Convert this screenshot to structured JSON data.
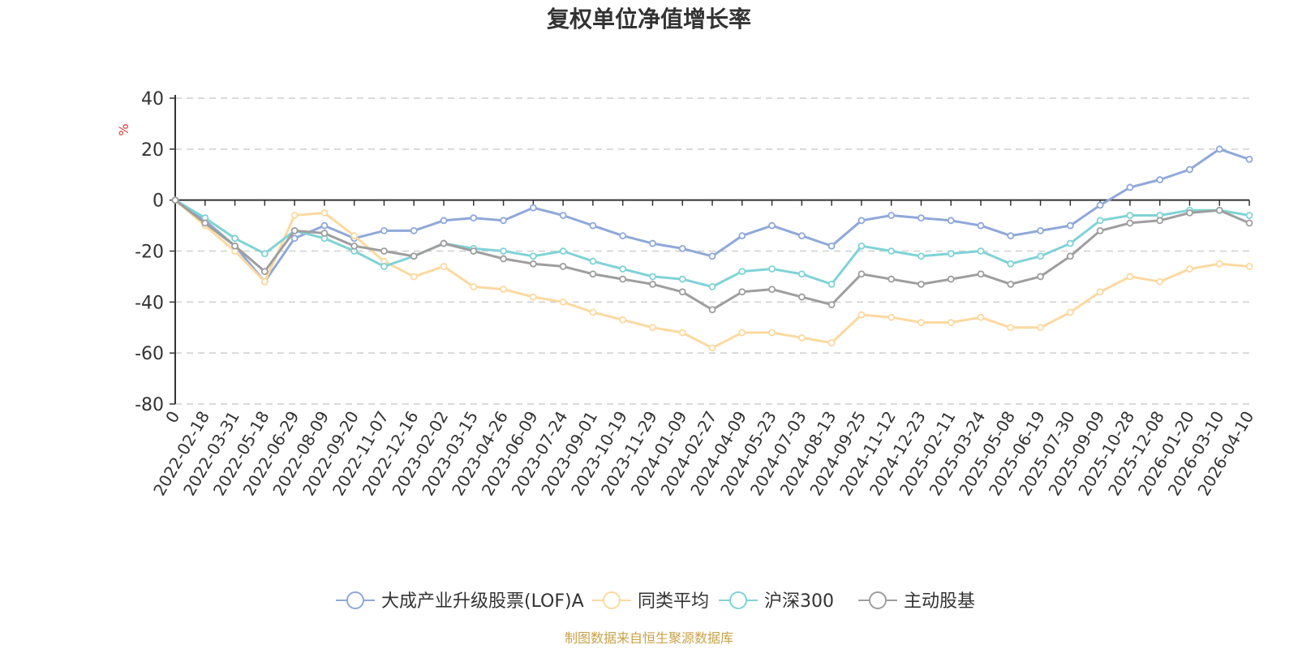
{
  "chart_data": {
    "type": "line",
    "title": "复权单位净值增长率",
    "ylabel": "%",
    "ylim": [
      -80,
      40
    ],
    "yticks": [
      40,
      20,
      0,
      -20,
      -40,
      -60,
      -80
    ],
    "grid": true,
    "legend_position": "bottom",
    "source": "制图数据来自恒生聚源数据库",
    "categories": [
      "0",
      "2022-02-18",
      "2022-03-31",
      "2022-05-18",
      "2022-06-29",
      "2022-08-09",
      "2022-09-20",
      "2022-11-07",
      "2022-12-16",
      "2023-02-02",
      "2023-03-15",
      "2023-04-26",
      "2023-06-09",
      "2023-07-24",
      "2023-09-01",
      "2023-10-19",
      "2023-11-29",
      "2024-01-09",
      "2024-02-27",
      "2024-04-09",
      "2024-05-23",
      "2024-07-03",
      "2024-08-13",
      "2024-09-25",
      "2024-11-12",
      "2024-12-23",
      "2025-02-11",
      "2025-03-24",
      "2025-05-08",
      "2025-06-19",
      "2025-07-30",
      "2025-09-09",
      "2025-10-28",
      "2025-12-08",
      "2026-01-20",
      "2026-03-10",
      "2026-04-10"
    ],
    "series": [
      {
        "name": "大成产业升级股票(LOF)A",
        "color": "#8fa8d8",
        "values": [
          0,
          -8,
          -18,
          -32,
          -15,
          -10,
          -15,
          -12,
          -12,
          -8,
          -7,
          -8,
          -3,
          -6,
          -10,
          -14,
          -17,
          -19,
          -22,
          -14,
          -10,
          -14,
          -18,
          -8,
          -6,
          -7,
          -8,
          -10,
          -14,
          -12,
          -10,
          -2,
          5,
          8,
          12,
          20,
          16
        ]
      },
      {
        "name": "同类平均",
        "color": "#fcd9a0",
        "values": [
          0,
          -10,
          -20,
          -32,
          -6,
          -5,
          -14,
          -24,
          -30,
          -26,
          -34,
          -35,
          -38,
          -40,
          -44,
          -47,
          -50,
          -52,
          -58,
          -52,
          -52,
          -54,
          -56,
          -45,
          -46,
          -48,
          -48,
          -46,
          -50,
          -50,
          -44,
          -36,
          -30,
          -32,
          -27,
          -25,
          -26
        ]
      },
      {
        "name": "沪深300",
        "color": "#7fd3d6",
        "values": [
          0,
          -7,
          -15,
          -21,
          -12,
          -15,
          -20,
          -26,
          -22,
          -17,
          -19,
          -20,
          -22,
          -20,
          -24,
          -27,
          -30,
          -31,
          -34,
          -28,
          -27,
          -29,
          -33,
          -18,
          -20,
          -22,
          -21,
          -20,
          -25,
          -22,
          -17,
          -8,
          -6,
          -6,
          -4,
          -4,
          -6
        ]
      },
      {
        "name": "主动股基",
        "color": "#9e9e9e",
        "values": [
          0,
          -9,
          -18,
          -28,
          -12,
          -13,
          -18,
          -20,
          -22,
          -17,
          -20,
          -23,
          -25,
          -26,
          -29,
          -31,
          -33,
          -36,
          -43,
          -36,
          -35,
          -38,
          -41,
          -29,
          -31,
          -33,
          -31,
          -29,
          -33,
          -30,
          -22,
          -12,
          -9,
          -8,
          -5,
          -4,
          -9
        ]
      }
    ]
  }
}
